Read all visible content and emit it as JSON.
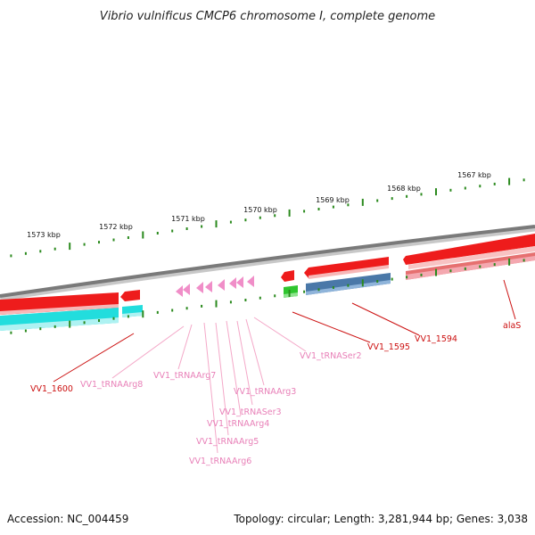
{
  "title": "Vibrio vulnificus CMCP6 chromosome I, complete genome",
  "footer": {
    "accession": "Accession: NC_004459",
    "topology": "Topology: circular; Length: 3,281,944 bp; Genes: 3,038"
  },
  "colors": {
    "backbone": "#7a7a7a",
    "tick": "#2b8a1e",
    "gene_red": "#ee1c1c",
    "gene_red_label": "#cc1111",
    "gene_cyan": "#22dddd",
    "gene_blue": "#4a78a8",
    "gene_green": "#2ec52e",
    "gene_pink_light": "#f4a8b0",
    "trna": "#f08ec8",
    "trna_label": "#e880b8"
  },
  "ruler": {
    "labels": [
      "1567 kbp",
      "1568 kbp",
      "1569 kbp",
      "1570 kbp",
      "1571 kbp",
      "1572 kbp",
      "1573 kbp"
    ]
  },
  "gene_labels": [
    {
      "text": "alaS",
      "kind": "cds"
    },
    {
      "text": "VV1_1594",
      "kind": "cds"
    },
    {
      "text": "VV1_1595",
      "kind": "cds"
    },
    {
      "text": "VV1_tRNASer2",
      "kind": "trna"
    },
    {
      "text": "VV1_tRNAArg3",
      "kind": "trna"
    },
    {
      "text": "VV1_tRNASer3",
      "kind": "trna"
    },
    {
      "text": "VV1_tRNAArg4",
      "kind": "trna"
    },
    {
      "text": "VV1_tRNAArg5",
      "kind": "trna"
    },
    {
      "text": "VV1_tRNAArg6",
      "kind": "trna"
    },
    {
      "text": "VV1_tRNAArg7",
      "kind": "trna"
    },
    {
      "text": "VV1_tRNAArg8",
      "kind": "trna"
    },
    {
      "text": "VV1_1600",
      "kind": "cds"
    }
  ]
}
